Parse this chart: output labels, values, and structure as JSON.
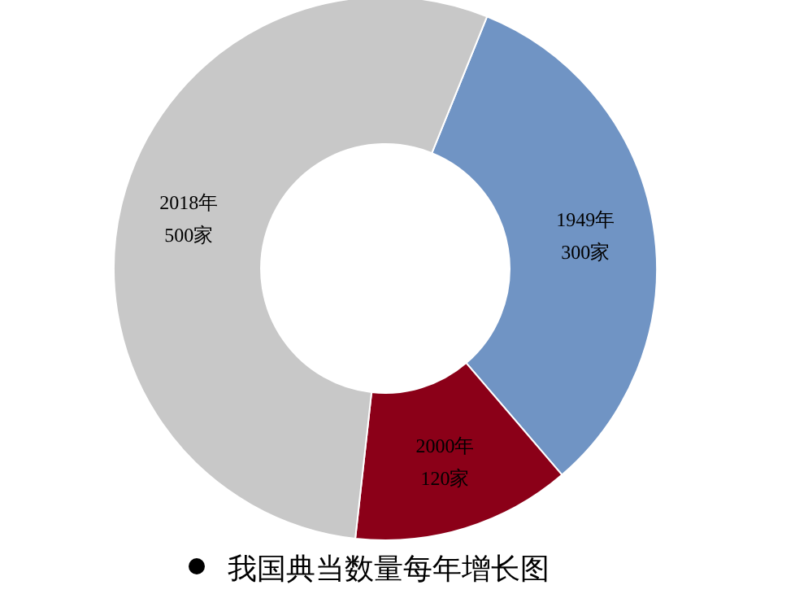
{
  "chart_data": {
    "type": "donut",
    "title": "我国典当数量每年增长图",
    "categories": [
      "1949年",
      "2000年",
      "2018年"
    ],
    "values": [
      300,
      120,
      500
    ],
    "value_labels": [
      "300家",
      "120家",
      "500家"
    ],
    "colors": [
      "#7094c4",
      "#8b0018",
      "#c8c8c8"
    ],
    "legend": false
  }
}
